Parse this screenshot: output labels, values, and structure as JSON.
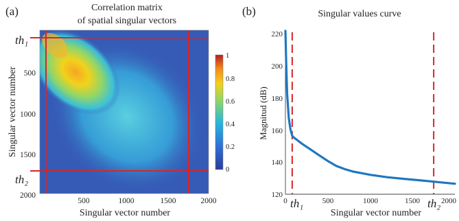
{
  "panel_a": {
    "label": "(a)",
    "title_line1": "Correlation matrix",
    "title_line2": "of spatial singular vectors",
    "xlabel": "Singular vector number",
    "ylabel": "Singular vector number",
    "x_ticks": [
      "500",
      "1000",
      "1500",
      "2000"
    ],
    "y_ticks": [
      "500",
      "1000",
      "1500",
      "2000"
    ],
    "th1": "th₁",
    "th2": "th₂",
    "colorbar_ticks": [
      "1",
      "0.8",
      "0.6",
      "0.4",
      "0.2",
      "0"
    ]
  },
  "panel_b": {
    "label": "(b)",
    "title": "Singular values curve",
    "xlabel": "Singular vector number",
    "ylabel": "Magnitud (dB)",
    "x_ticks": [
      "0",
      "500",
      "1000",
      "1500",
      "2000"
    ],
    "y_ticks": [
      "220",
      "200",
      "180",
      "160",
      "140",
      "120"
    ],
    "th1": "th₁",
    "th2": "th₂"
  },
  "colors": {
    "curve": "#1f77c0",
    "threshold": "#d62728",
    "heat_bg": "#3a5fb8"
  },
  "chart_data": [
    {
      "type": "heatmap",
      "title": "Correlation matrix of spatial singular vectors",
      "xlabel": "Singular vector number",
      "ylabel": "Singular vector number",
      "xlim": [
        0,
        2000
      ],
      "ylim": [
        0,
        2000
      ],
      "colorbar_range": [
        0,
        1
      ],
      "thresholds": {
        "th1": 50,
        "th2": 1750
      }
    },
    {
      "type": "line",
      "title": "Singular values curve",
      "xlabel": "Singular vector number",
      "ylabel": "Magnitud (dB)",
      "xlim": [
        0,
        2000
      ],
      "ylim": [
        120,
        220
      ],
      "thresholds": {
        "th1": 80,
        "th2": 1750
      },
      "x": [
        0,
        10,
        20,
        40,
        60,
        80,
        100,
        150,
        200,
        300,
        400,
        500,
        600,
        700,
        800,
        900,
        1000,
        1200,
        1400,
        1600,
        1800,
        2000
      ],
      "y": [
        221,
        200,
        182,
        167,
        160,
        156,
        155,
        153,
        151,
        147.5,
        144,
        140.5,
        137.5,
        135.5,
        134,
        133,
        132,
        130.5,
        129.5,
        128.5,
        127.5,
        126.5
      ]
    }
  ]
}
